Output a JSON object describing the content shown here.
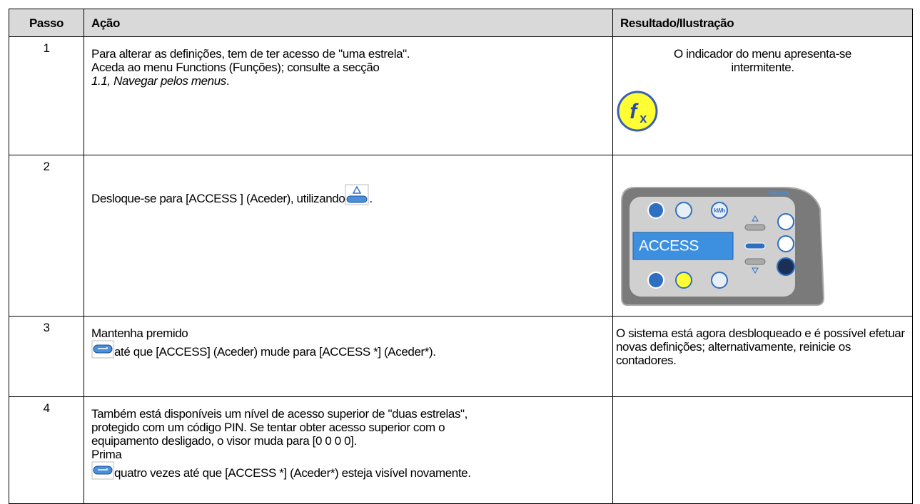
{
  "header": {
    "step": "Passo",
    "action": "Ação",
    "result": "Resultado/Ilustração"
  },
  "rows": [
    {
      "step": "1",
      "action": [
        "Para alterar as definições, tem de ter acesso de \"uma estrela\".",
        "Aceda ao menu Functions (Funções); consulte a secção"
      ],
      "action_italic": "1.1, Navegar pelos menus",
      "action_end": ".",
      "result": "O indicador do menu apresenta-se intermitente.",
      "icon": {
        "f": "f",
        "x": "x"
      }
    },
    {
      "step": "2",
      "action": "Desloque-se para [ACCESS ] (Aceder), utilizando",
      "action_end": ".",
      "display": "ACCESS",
      "brand": "Munters",
      "kwh": "kWh"
    },
    {
      "step": "3",
      "action": "Mantenha premido",
      "action_after": "até que [ACCESS] (Aceder) mude para [ACCESS *] (Aceder*).",
      "result": "O sistema está agora desbloqueado e é possível efetuar novas definições; alternativamente, reinicie os contadores."
    },
    {
      "step": "4",
      "action": "Também está disponíveis um nível de acesso superior de \"duas estrelas\", protegido com um código PIN. Se tentar obter acesso superior com o equipamento desligado, o visor muda para [0 0 0 0].",
      "action_prima": "Prima",
      "action_after": "quatro vezes até que [ACCESS *] (Aceder*) esteja visível novamente."
    }
  ]
}
